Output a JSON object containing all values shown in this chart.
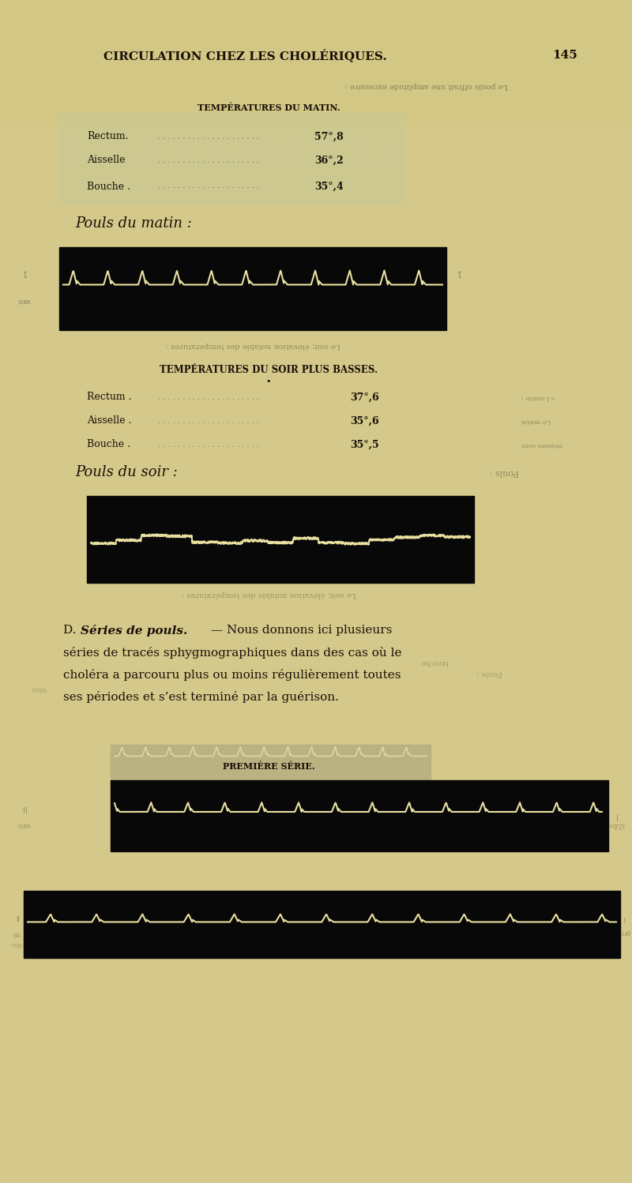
{
  "bg_color": "#c8c090",
  "page_bg": "#d4c98a",
  "title_text": "CIRCULATION CHEZ LES CHOLÉRIQUES.",
  "page_number": "145",
  "header_subtitle": "TEMPÉRATURES DU MATIN.",
  "reversed_text_top": "Le pouls offrait une amplitude excessive :",
  "table1_rows": [
    [
      "Rectum.",
      "57°,8"
    ],
    [
      "Aisselle",
      "36°,2"
    ],
    [
      "Bouche .",
      "35°,4"
    ]
  ],
  "table1_bg": "#ccc890",
  "pouls_matin": "Pouls du matin :",
  "section2_title": "TEMPÉRATURES DU SOIR PLUS BASSES.",
  "section2_dot": "•",
  "table2_rows": [
    [
      "Rectum .",
      "37°,6"
    ],
    [
      "Aisselle .",
      "35°,6"
    ],
    [
      "Bouche .",
      "35°,5"
    ]
  ],
  "pouls_soir": "Pouls du soir :",
  "reversed_soir": "Pouls :",
  "para_line1a": "D.  ",
  "para_line1b": "Séries de pouls.",
  "para_line1c": " — Nous donnons ici plusieurs",
  "para_line2": "séries de tracés sphygmographiques dans des cas où le",
  "para_line3": "choléra a parcouru plus ou moins régulièrement toutes",
  "para_line4": "ses périodes et s’est terminé par la guérison.",
  "premiere_serie": "PREMIÈRE SÉRIE.",
  "text_color": "#1a1008",
  "band_color": "#080808",
  "wave_color": "#e8e0a0",
  "premiere_bg": "#b8b080"
}
